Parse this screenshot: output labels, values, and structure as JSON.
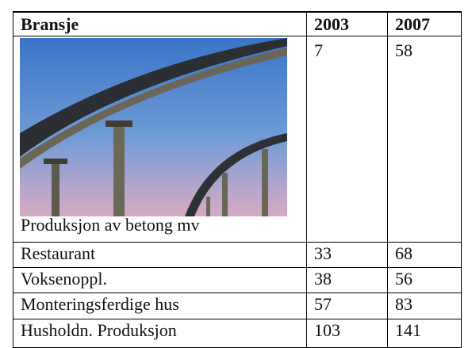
{
  "table": {
    "header": [
      "Bransje",
      "2003",
      "2007"
    ],
    "rows": [
      [
        "Produksjon av betong mv",
        7,
        58
      ],
      [
        "Restaurant",
        33,
        68
      ],
      [
        "Voksenoppl.",
        38,
        56
      ],
      [
        "Monteringsferdige hus",
        57,
        83
      ],
      [
        "Husholdn. Produksjon",
        103,
        141
      ]
    ]
  }
}
